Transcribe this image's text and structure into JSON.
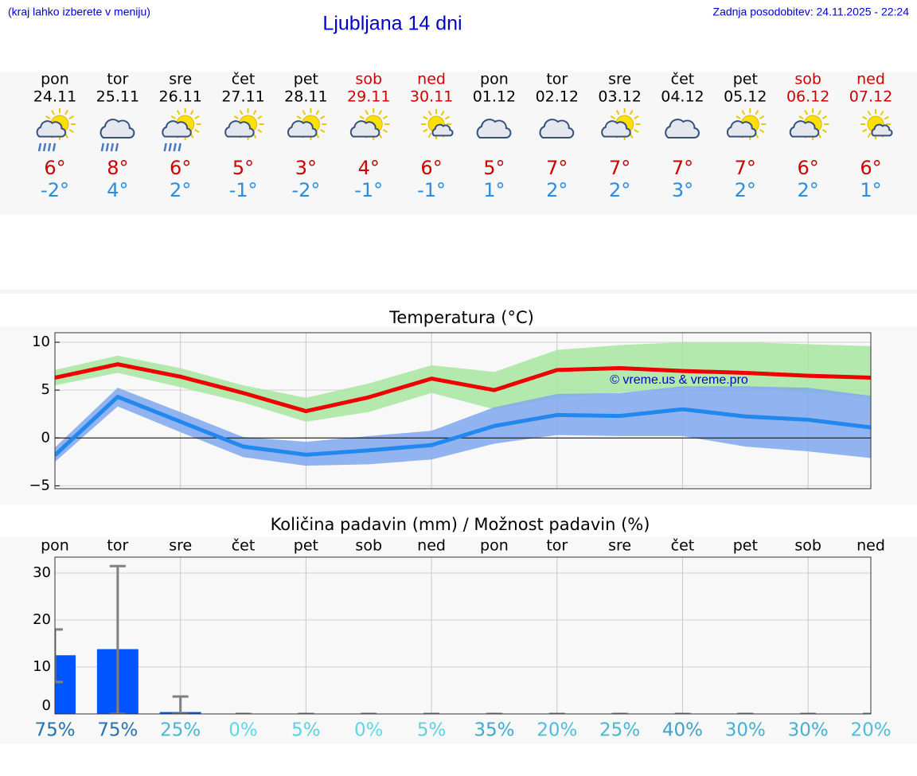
{
  "header": {
    "note": "(kraj lahko izberete v meniju)",
    "title": "Ljubljana 14 dni",
    "updated": "Zadnja posodobitev: 24.11.2025 - 22:24"
  },
  "colors": {
    "max": "#cc0000",
    "min": "#2b8ce0"
  },
  "days": [
    {
      "weekday": "pon",
      "date": "24.11",
      "max": "6°",
      "min": "-2°",
      "color": "#000000"
    },
    {
      "weekday": "tor",
      "date": "25.11",
      "max": "8°",
      "min": "4°",
      "color": "#000000"
    },
    {
      "weekday": "sre",
      "date": "26.11",
      "max": "6°",
      "min": "2°",
      "color": "#000000"
    },
    {
      "weekday": "čet",
      "date": "27.11",
      "max": "5°",
      "min": "-1°",
      "color": "#000000"
    },
    {
      "weekday": "pet",
      "date": "28.11",
      "max": "3°",
      "min": "-2°",
      "color": "#000000"
    },
    {
      "weekday": "sob",
      "date": "29.11",
      "max": "4°",
      "min": "-1°",
      "color": "#cc0000"
    },
    {
      "weekday": "ned",
      "date": "30.11",
      "max": "6°",
      "min": "-1°",
      "color": "#cc0000"
    },
    {
      "weekday": "pon",
      "date": "01.12",
      "max": "5°",
      "min": "1°",
      "color": "#000000"
    },
    {
      "weekday": "tor",
      "date": "02.12",
      "max": "7°",
      "min": "2°",
      "color": "#000000"
    },
    {
      "weekday": "sre",
      "date": "03.12",
      "max": "7°",
      "min": "2°",
      "color": "#000000"
    },
    {
      "weekday": "čet",
      "date": "04.12",
      "max": "7°",
      "min": "3°",
      "color": "#000000"
    },
    {
      "weekday": "pet",
      "date": "05.12",
      "max": "7°",
      "min": "2°",
      "color": "#000000"
    },
    {
      "weekday": "sob",
      "date": "06.12",
      "max": "6°",
      "min": "2°",
      "color": "#cc0000"
    },
    {
      "weekday": "ned",
      "date": "07.12",
      "max": "6°",
      "min": "1°",
      "color": "#cc0000"
    }
  ],
  "chart_data": [
    {
      "type": "line",
      "title": "Temperatura (°C)",
      "categories": [
        null,
        null,
        null,
        null,
        null,
        null,
        null,
        null,
        null,
        null,
        null,
        null,
        null,
        null
      ],
      "ylim": [
        -5.3,
        11
      ],
      "yticks": [
        {
          "value": -5,
          "label": "−5"
        },
        0,
        5,
        10
      ],
      "grid": true,
      "zero_line": true,
      "annotation": "© vreme.us & vreme.pro",
      "bands": [
        {
          "color": "#a8e6a0",
          "upper": [
            7.1,
            8.6,
            7.3,
            5.5,
            4.2,
            5.7,
            7.6,
            6.9,
            9.2,
            9.7,
            10,
            10,
            9.8,
            9.6
          ],
          "lower": [
            5.5,
            6.8,
            5.3,
            3.7,
            1.7,
            2.7,
            4.7,
            3.0,
            4.2,
            4.75,
            5.25,
            5.2,
            4.75,
            4.3
          ]
        },
        {
          "color": "#7fa8ee",
          "upper": [
            -1.0,
            5.25,
            2.7,
            0.1,
            -0.4,
            0.2,
            0.75,
            3.2,
            4.6,
            4.7,
            5.4,
            5.4,
            5.25,
            4.4
          ],
          "lower": [
            -2.5,
            3.3,
            0.6,
            -2.0,
            -2.9,
            -2.75,
            -2.25,
            -0.6,
            0.3,
            0.2,
            0.2,
            -0.9,
            -1.4,
            -2.1
          ]
        }
      ],
      "series": [
        {
          "color": "#ee0000",
          "values": [
            6.3,
            7.7,
            6.4,
            4.7,
            2.8,
            4.25,
            6.2,
            5.0,
            7.1,
            7.3,
            7.0,
            6.8,
            6.5,
            6.3
          ]
        },
        {
          "color": "#2288ee",
          "values": [
            -1.8,
            4.3,
            1.7,
            -0.9,
            -1.75,
            -1.3,
            -0.75,
            1.25,
            2.4,
            2.3,
            3.0,
            2.25,
            1.9,
            1.1
          ]
        }
      ]
    },
    {
      "type": "bar",
      "title": "Količina padavin (mm) / Možnost padavin (%)",
      "categories": [
        "pon",
        "tor",
        "sre",
        "čet",
        "pet",
        "sob",
        "ned",
        "pon",
        "tor",
        "sre",
        "čet",
        "pet",
        "sob",
        "ned"
      ],
      "values": [
        12.5,
        13.8,
        0.4,
        0,
        0,
        0,
        0,
        0,
        0,
        0,
        0,
        0,
        0,
        0
      ],
      "err_low": [
        6.8,
        0,
        0,
        0,
        0,
        0,
        0,
        0,
        0,
        0,
        0,
        0,
        0,
        0
      ],
      "err_high": [
        18,
        31.5,
        3.7,
        0,
        0,
        0,
        0,
        0,
        0,
        0,
        0,
        0,
        0,
        0
      ],
      "color": "#0055ff",
      "error_color": "#808080",
      "ylim": [
        0,
        33.4
      ],
      "yticks": [
        0,
        10,
        20,
        30
      ],
      "grid": true,
      "chance": {
        "values": [
          75,
          75,
          25,
          0,
          5,
          0,
          5,
          35,
          20,
          25,
          40,
          30,
          30,
          20
        ],
        "value_labels": [
          "75%",
          "75%",
          "25%",
          "0%",
          "5%",
          "0%",
          "5%",
          "35%",
          "20%",
          "25%",
          "40%",
          "30%",
          "30%",
          "20%"
        ],
        "colors": [
          "#5fd8e6",
          "#10509c"
        ]
      }
    }
  ]
}
